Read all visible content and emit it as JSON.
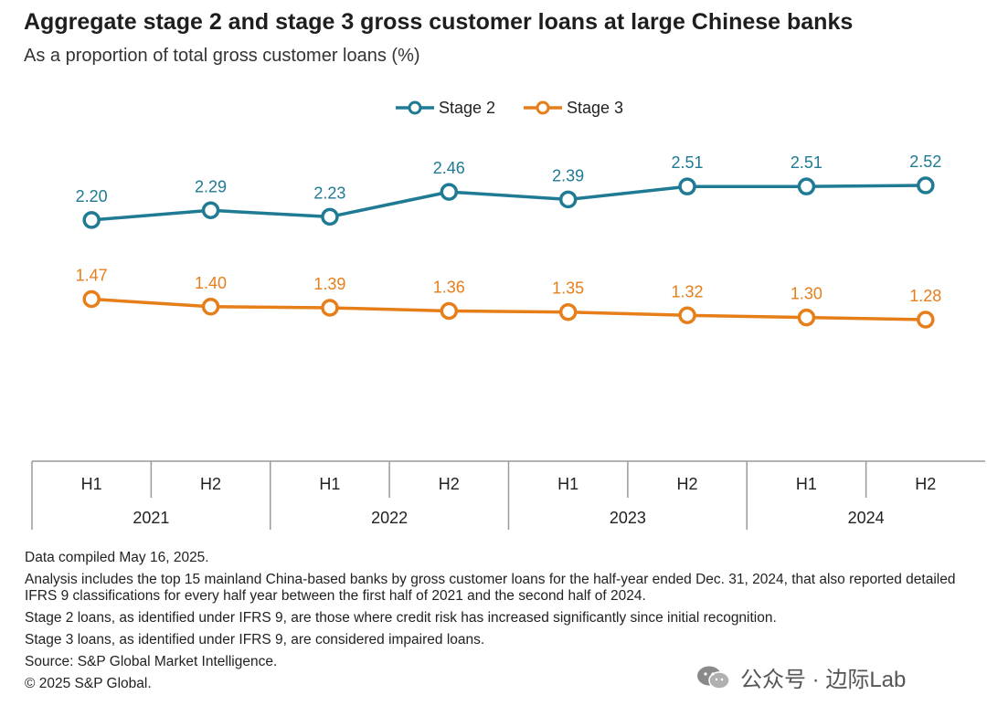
{
  "title": "Aggregate stage 2 and stage 3 gross customer loans at large Chinese banks",
  "subtitle": "As a proportion of total gross customer loans (%)",
  "colors": {
    "stage2": "#1f7a94",
    "stage3": "#e67e1a",
    "axis": "#9a9a9a"
  },
  "chart_data": {
    "type": "line",
    "categories": [
      "H1",
      "H2",
      "H1",
      "H2",
      "H1",
      "H2",
      "H1",
      "H2"
    ],
    "groups": [
      {
        "label": "2021",
        "span": 2
      },
      {
        "label": "2022",
        "span": 2
      },
      {
        "label": "2023",
        "span": 2
      },
      {
        "label": "2024",
        "span": 2
      }
    ],
    "series": [
      {
        "name": "Stage 2",
        "color": "#1f7a94",
        "values": [
          2.2,
          2.29,
          2.23,
          2.46,
          2.39,
          2.51,
          2.51,
          2.52
        ]
      },
      {
        "name": "Stage 3",
        "color": "#e67e1a",
        "values": [
          1.47,
          1.4,
          1.39,
          1.36,
          1.35,
          1.32,
          1.3,
          1.28
        ]
      }
    ],
    "legend": "top-center",
    "grid": false,
    "data_labels": true
  },
  "notes": [
    "Data compiled May 16, 2025.",
    "Analysis includes the top 15 mainland China-based banks by gross customer loans for the half-year ended Dec. 31, 2024, that also reported detailed IFRS 9 classifications for every half year between the first half of 2021 and the second half of 2024.",
    "Stage 2 loans, as identified under IFRS 9, are those where credit risk has increased significantly since initial recognition.",
    "Stage 3 loans, as identified under IFRS 9, are considered impaired loans.",
    "Source: S&P Global Market Intelligence.",
    "© 2025 S&P Global."
  ],
  "watermark": {
    "text": "公众号 · 边际Lab",
    "icon": "wechat-icon"
  }
}
